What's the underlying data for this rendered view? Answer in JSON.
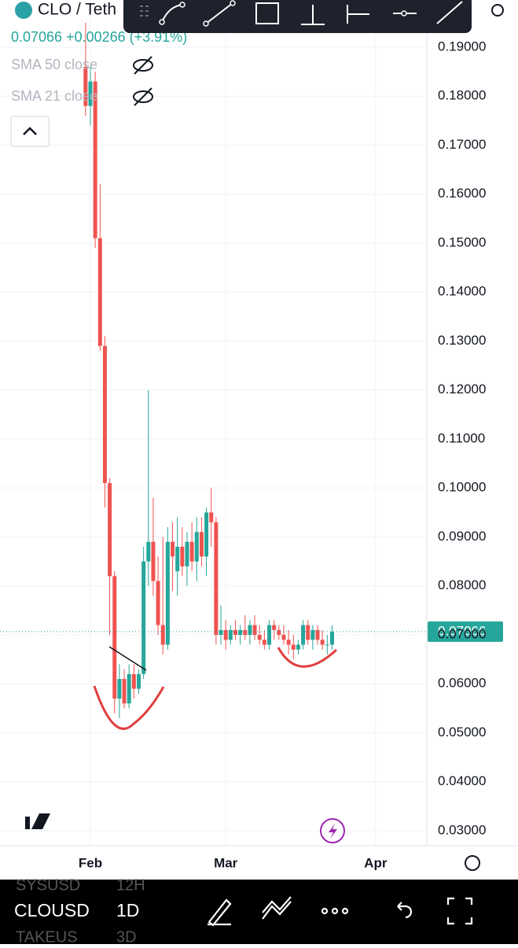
{
  "header": {
    "symbol": "CLO / Teth",
    "quote": "0.07066 +0.00266 (+3.91%)",
    "indicators": [
      "SMA 50 close",
      "SMA 21 close"
    ]
  },
  "bottom_bar": {
    "symbols": [
      "SYSUSD",
      "CLOUSD",
      "TAKEUS"
    ],
    "intervals": [
      "12H",
      "1D",
      "3D"
    ]
  },
  "chart_data": {
    "type": "candlestick",
    "up_color": "#26a69a",
    "down_color": "#ef5350",
    "grid": true,
    "ylim": [
      0.02695,
      0.19964
    ],
    "yticks": [
      {
        "value": 0.03,
        "label": "0.03000"
      },
      {
        "value": 0.04,
        "label": "0.04000"
      },
      {
        "value": 0.05,
        "label": "0.05000"
      },
      {
        "value": 0.06,
        "label": "0.06000"
      },
      {
        "value": 0.07,
        "label": "0.07000"
      },
      {
        "value": 0.08,
        "label": "0.08000"
      },
      {
        "value": 0.09,
        "label": "0.09000"
      },
      {
        "value": 0.1,
        "label": "0.10000"
      },
      {
        "value": 0.11,
        "label": "0.11000"
      },
      {
        "value": 0.12,
        "label": "0.12000"
      },
      {
        "value": 0.13,
        "label": "0.13000"
      },
      {
        "value": 0.14,
        "label": "0.14000"
      },
      {
        "value": 0.15,
        "label": "0.15000"
      },
      {
        "value": 0.16,
        "label": "0.16000"
      },
      {
        "value": 0.17,
        "label": "0.17000"
      },
      {
        "value": 0.18,
        "label": "0.18000"
      },
      {
        "value": 0.19,
        "label": "0.19000"
      }
    ],
    "xlim": [
      -18.7,
      69.6
    ],
    "xticks": [
      {
        "value": 0,
        "label": "Feb"
      },
      {
        "value": 28,
        "label": "Mar"
      },
      {
        "value": 59,
        "label": "Apr"
      }
    ],
    "last_price": 0.07066,
    "candles": {
      "x": [
        -1,
        0,
        1,
        2,
        3,
        4,
        5,
        6,
        7,
        8,
        9,
        10,
        11,
        12,
        13,
        14,
        15,
        16,
        17,
        18,
        19,
        20,
        21,
        22,
        23,
        24,
        25,
        26,
        27,
        28,
        29,
        30,
        31,
        32,
        33,
        34,
        35,
        36,
        37,
        38,
        39,
        40,
        41,
        42,
        43,
        44,
        45,
        46,
        47,
        48,
        49,
        50
      ],
      "open": [
        0.186,
        0.178,
        0.183,
        0.151,
        0.129,
        0.101,
        0.082,
        0.057,
        0.061,
        0.056,
        0.062,
        0.059,
        0.062,
        0.085,
        0.089,
        0.081,
        0.072,
        0.068,
        0.089,
        0.083,
        0.088,
        0.084,
        0.089,
        0.085,
        0.091,
        0.086,
        0.095,
        0.093,
        0.07,
        0.071,
        0.069,
        0.071,
        0.07,
        0.071,
        0.07,
        0.072,
        0.07,
        0.069,
        0.068,
        0.072,
        0.071,
        0.07,
        0.069,
        0.068,
        0.067,
        0.068,
        0.072,
        0.069,
        0.071,
        0.069,
        0.068,
        0.068
      ],
      "high": [
        0.195,
        0.186,
        0.185,
        0.162,
        0.131,
        0.102,
        0.083,
        0.064,
        0.063,
        0.064,
        0.064,
        0.063,
        0.088,
        0.12,
        0.098,
        0.086,
        0.09,
        0.092,
        0.093,
        0.094,
        0.092,
        0.091,
        0.093,
        0.094,
        0.094,
        0.096,
        0.1,
        0.094,
        0.076,
        0.073,
        0.072,
        0.073,
        0.072,
        0.074,
        0.073,
        0.074,
        0.072,
        0.071,
        0.073,
        0.073,
        0.072,
        0.072,
        0.071,
        0.07,
        0.069,
        0.073,
        0.073,
        0.072,
        0.072,
        0.071,
        0.07,
        0.072
      ],
      "low": [
        0.176,
        0.174,
        0.149,
        0.128,
        0.096,
        0.07,
        0.054,
        0.053,
        0.055,
        0.055,
        0.057,
        0.058,
        0.061,
        0.08,
        0.078,
        0.07,
        0.066,
        0.067,
        0.079,
        0.078,
        0.082,
        0.08,
        0.083,
        0.081,
        0.084,
        0.082,
        0.088,
        0.068,
        0.068,
        0.067,
        0.068,
        0.069,
        0.068,
        0.069,
        0.068,
        0.069,
        0.068,
        0.067,
        0.067,
        0.069,
        0.069,
        0.068,
        0.066,
        0.065,
        0.066,
        0.067,
        0.068,
        0.067,
        0.068,
        0.067,
        0.066,
        0.067
      ],
      "close": [
        0.178,
        0.183,
        0.151,
        0.129,
        0.101,
        0.082,
        0.057,
        0.061,
        0.056,
        0.062,
        0.059,
        0.062,
        0.085,
        0.089,
        0.081,
        0.072,
        0.068,
        0.089,
        0.086,
        0.088,
        0.084,
        0.089,
        0.085,
        0.091,
        0.086,
        0.095,
        0.093,
        0.07,
        0.071,
        0.069,
        0.071,
        0.07,
        0.071,
        0.07,
        0.072,
        0.07,
        0.069,
        0.068,
        0.072,
        0.071,
        0.07,
        0.069,
        0.068,
        0.067,
        0.068,
        0.072,
        0.069,
        0.071,
        0.069,
        0.068,
        0.068,
        0.07066
      ]
    }
  }
}
